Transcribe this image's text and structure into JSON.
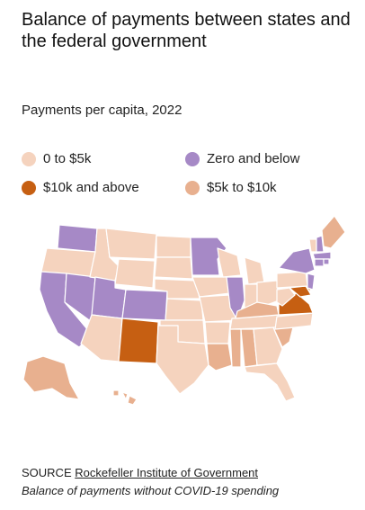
{
  "title": "Balance of payments between states and the federal government",
  "subtitle": "Payments per capita, 2022",
  "legend": [
    {
      "label": "0 to $5k",
      "color": "#f5d3be"
    },
    {
      "label": "Zero and below",
      "color": "#a689c6"
    },
    {
      "label": "$10k and above",
      "color": "#c65f12"
    },
    {
      "label": "$5k to $10k",
      "color": "#e8b08f"
    }
  ],
  "colors": {
    "cat_0_5k": "#f5d3be",
    "cat_zero": "#a689c6",
    "cat_10k": "#c65f12",
    "cat_5_10k": "#e8b08f",
    "border": "#ffffff"
  },
  "source": {
    "prefix": "SOURCE",
    "link_text": "Rockefeller Institute of Government"
  },
  "note": "Balance of payments without COVID-19 spending"
}
